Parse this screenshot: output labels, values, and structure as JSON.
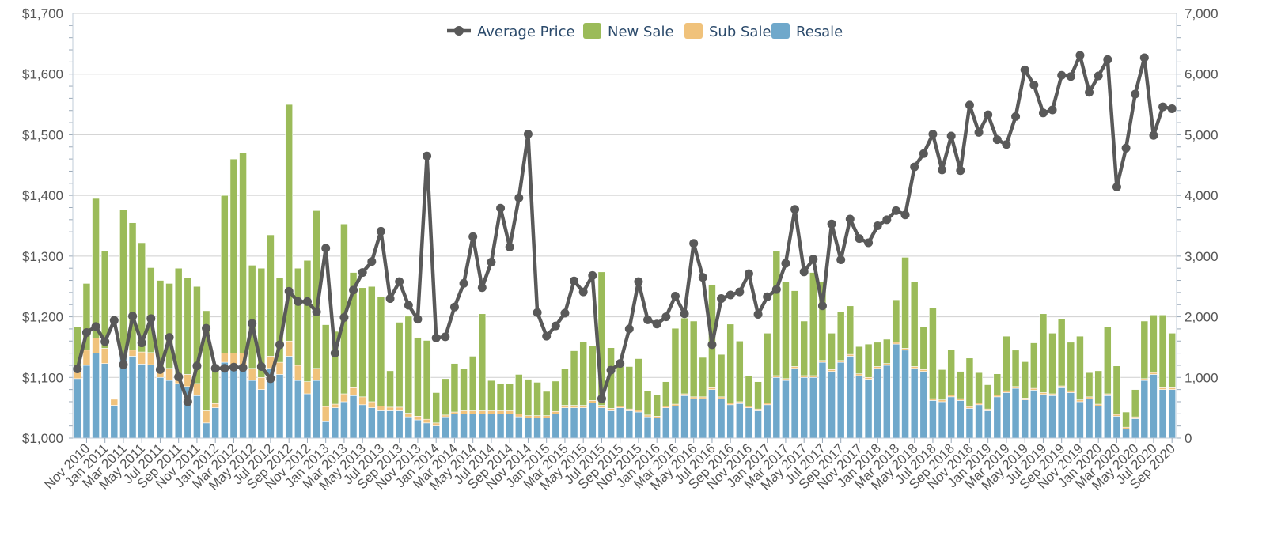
{
  "chart_data": {
    "type": "bar",
    "stacked": true,
    "legend_position": "top-center",
    "grid": true,
    "title": "",
    "xlabel": "",
    "ylabel": "",
    "ylabel_right": "",
    "x": [
      "Oct 2010",
      "Nov 2010",
      "Dec 2010",
      "Jan 2011",
      "Feb 2011",
      "Mar 2011",
      "Apr 2011",
      "May 2011",
      "Jun 2011",
      "Jul 2011",
      "Aug 2011",
      "Sep 2011",
      "Oct 2011",
      "Nov 2011",
      "Dec 2011",
      "Jan 2012",
      "Feb 2012",
      "Mar 2012",
      "Apr 2012",
      "May 2012",
      "Jun 2012",
      "Jul 2012",
      "Aug 2012",
      "Sep 2012",
      "Oct 2012",
      "Nov 2012",
      "Dec 2012",
      "Jan 2013",
      "Feb 2013",
      "Mar 2013",
      "Apr 2013",
      "May 2013",
      "Jun 2013",
      "Jul 2013",
      "Aug 2013",
      "Sep 2013",
      "Oct 2013",
      "Nov 2013",
      "Dec 2013",
      "Jan 2014",
      "Feb 2014",
      "Mar 2014",
      "Apr 2014",
      "May 2014",
      "Jun 2014",
      "Jul 2014",
      "Aug 2014",
      "Sep 2014",
      "Oct 2014",
      "Nov 2014",
      "Dec 2014",
      "Jan 2015",
      "Feb 2015",
      "Mar 2015",
      "Apr 2015",
      "May 2015",
      "Jun 2015",
      "Jul 2015",
      "Aug 2015",
      "Sep 2015",
      "Oct 2015",
      "Nov 2015",
      "Dec 2015",
      "Jan 2016",
      "Feb 2016",
      "Mar 2016",
      "Apr 2016",
      "May 2016",
      "Jun 2016",
      "Jul 2016",
      "Aug 2016",
      "Sep 2016",
      "Oct 2016",
      "Nov 2016",
      "Dec 2016",
      "Jan 2017",
      "Feb 2017",
      "Mar 2017",
      "Apr 2017",
      "May 2017",
      "Jun 2017",
      "Jul 2017",
      "Aug 2017",
      "Sep 2017",
      "Oct 2017",
      "Nov 2017",
      "Dec 2017",
      "Jan 2018",
      "Feb 2018",
      "Mar 2018",
      "Apr 2018",
      "May 2018",
      "Jun 2018",
      "Jul 2018",
      "Aug 2018",
      "Sep 2018",
      "Oct 2018",
      "Nov 2018",
      "Dec 2018",
      "Jan 2019",
      "Feb 2019",
      "Mar 2019",
      "Apr 2019",
      "May 2019",
      "Jun 2019",
      "Jul 2019",
      "Aug 2019",
      "Sep 2019",
      "Oct 2019",
      "Nov 2019",
      "Dec 2019",
      "Jan 2020",
      "Feb 2020",
      "Mar 2020",
      "Apr 2020",
      "May 2020",
      "Jun 2020",
      "Jul 2020",
      "Aug 2020",
      "Sep 2020"
    ],
    "x_tick_labels": [
      "Nov 2010",
      "Jan 2011",
      "Mar 2011",
      "May 2011",
      "Jul 2011",
      "Sep 2011",
      "Nov 2011",
      "Jan 2012",
      "Mar 2012",
      "May 2012",
      "Jul 2012",
      "Sep 2012",
      "Nov 2012",
      "Jan 2013",
      "Mar 2013",
      "May 2013",
      "Jul 2013",
      "Sep 2013",
      "Nov 2013",
      "Jan 2014",
      "Mar 2014",
      "May 2014",
      "Jul 2014",
      "Sep 2014",
      "Nov 2014",
      "Jan 2015",
      "Mar 2015",
      "May 2015",
      "Jul 2015",
      "Sep 2015",
      "Nov 2015",
      "Jan 2016",
      "Mar 2016",
      "May 2016",
      "Jul 2016",
      "Sep 2016",
      "Nov 2016",
      "Jan 2017",
      "Mar 2017",
      "May 2017",
      "Jul 2017",
      "Sep 2017",
      "Nov 2017",
      "Jan 2018",
      "Mar 2018",
      "May 2018",
      "Jul 2018",
      "Sep 2018",
      "Nov 2018",
      "Jan 2019",
      "Mar 2019",
      "May 2019",
      "Jul 2019",
      "Sep 2019",
      "Nov 2019",
      "Jan 2020",
      "Mar 2020",
      "May 2020",
      "Jul 2020",
      "Sep 2020"
    ],
    "y_left": {
      "ylim": [
        1000,
        1700
      ],
      "ticks": [
        "$1,000",
        "$1,100",
        "$1,200",
        "$1,300",
        "$1,400",
        "$1,500",
        "$1,600",
        "$1,700"
      ]
    },
    "y_right": {
      "ylim": [
        0,
        7000
      ],
      "ticks": [
        "0",
        "1,000",
        "2,000",
        "3,000",
        "4,000",
        "5,000",
        "6,000",
        "7,000"
      ]
    },
    "series": [
      {
        "name": "Average Price",
        "type": "line",
        "axis": "left",
        "color": "#595959",
        "values": [
          1114,
          1174,
          1184,
          1159,
          1194,
          1121,
          1201,
          1157,
          1197,
          1113,
          1166,
          1101,
          1060,
          1119,
          1181,
          1115,
          1115,
          1117,
          1116,
          1189,
          1118,
          1098,
          1154,
          1242,
          1225,
          1225,
          1208,
          1313,
          1140,
          1199,
          1244,
          1273,
          1291,
          1341,
          1230,
          1258,
          1219,
          1196,
          1465,
          1165,
          1167,
          1216,
          1255,
          1332,
          1248,
          1290,
          1379,
          1315,
          1396,
          1501,
          1207,
          1168,
          1185,
          1206,
          1259,
          1241,
          1268,
          1065,
          1112,
          1123,
          1180,
          1258,
          1195,
          1188,
          1200,
          1234,
          1205,
          1321,
          1265,
          1154,
          1230,
          1236,
          1241,
          1271,
          1204,
          1233,
          1245,
          1288,
          1377,
          1274,
          1295,
          1218,
          1353,
          1294,
          1361,
          1329,
          1322,
          1350,
          1360,
          1375,
          1368,
          1447,
          1469,
          1501,
          1442,
          1498,
          1441,
          1549,
          1504,
          1533,
          1492,
          1484,
          1530,
          1607,
          1582,
          1536,
          1541,
          1598,
          1596,
          1631,
          1570,
          1597,
          1624,
          1414,
          1478,
          1567,
          1627,
          1499,
          1546,
          1543
        ]
      },
      {
        "name": "New Sale",
        "type": "bar",
        "axis": "right",
        "color": "#9bbb59",
        "values": [
          700,
          1100,
          2300,
          1600,
          0,
          2400,
          2100,
          1800,
          1400,
          1500,
          1400,
          1800,
          1600,
          1600,
          1650,
          600,
          2600,
          3200,
          3300,
          1700,
          1800,
          2000,
          1400,
          3900,
          1600,
          2000,
          2600,
          1350,
          1200,
          2800,
          1900,
          1800,
          1900,
          1800,
          600,
          1400,
          1600,
          1300,
          1300,
          500,
          600,
          800,
          700,
          900,
          1600,
          500,
          450,
          450,
          650,
          600,
          550,
          400,
          500,
          600,
          900,
          1050,
          900,
          2200,
          1000,
          650,
          700,
          850,
          400,
          350,
          400,
          1250,
          1250,
          1250,
          650,
          1700,
          700,
          1300,
          1000,
          500,
          450,
          1150,
          2050,
          1600,
          1250,
          900,
          1700,
          1300,
          600,
          800,
          800,
          450,
          550,
          400,
          400,
          700,
          1500,
          1400,
          700,
          1500,
          500,
          750,
          450,
          800,
          500,
          400,
          350,
          900,
          600,
          600,
          750,
          1300,
          1000,
          1100,
          800,
          1050,
          400,
          550,
          1100,
          800,
          250,
          450,
          950,
          950,
          1200,
          900
        ],
        "approximate": true
      },
      {
        "name": "Sub Sale",
        "type": "bar",
        "axis": "right",
        "color": "#f0c27b",
        "values": [
          150,
          250,
          250,
          250,
          100,
          0,
          100,
          200,
          200,
          100,
          200,
          100,
          200,
          200,
          200,
          70,
          150,
          200,
          200,
          200,
          200,
          200,
          200,
          250,
          250,
          200,
          200,
          250,
          60,
          130,
          130,
          130,
          100,
          80,
          60,
          60,
          60,
          60,
          60,
          50,
          30,
          30,
          50,
          50,
          50,
          50,
          50,
          50,
          50,
          40,
          40,
          40,
          40,
          40,
          40,
          40,
          40,
          40,
          40,
          30,
          30,
          30,
          30,
          30,
          30,
          30,
          30,
          30,
          30,
          30,
          30,
          30,
          30,
          30,
          30,
          30,
          30,
          30,
          30,
          30,
          30,
          30,
          30,
          30,
          30,
          30,
          30,
          30,
          30,
          30,
          30,
          30,
          30,
          30,
          30,
          30,
          30,
          30,
          30,
          30,
          30,
          30,
          30,
          30,
          30,
          30,
          30,
          30,
          30,
          30,
          30,
          30,
          30,
          30,
          30,
          30,
          30,
          30,
          30,
          30
        ],
        "approximate": true
      },
      {
        "name": "Resale",
        "type": "bar",
        "axis": "right",
        "color": "#6fa8cb",
        "values": [
          980,
          1200,
          1400,
          1230,
          540,
          1370,
          1350,
          1220,
          1210,
          1000,
          950,
          900,
          850,
          700,
          250,
          500,
          1250,
          1200,
          1200,
          950,
          800,
          1150,
          1050,
          1350,
          950,
          730,
          950,
          270,
          500,
          600,
          700,
          550,
          500,
          450,
          450,
          450,
          350,
          300,
          250,
          200,
          350,
          400,
          400,
          400,
          400,
          400,
          400,
          400,
          350,
          330,
          330,
          330,
          400,
          500,
          500,
          500,
          580,
          500,
          450,
          500,
          450,
          430,
          350,
          330,
          500,
          530,
          700,
          650,
          650,
          800,
          650,
          550,
          570,
          500,
          450,
          550,
          1000,
          950,
          1150,
          1000,
          1000,
          1250,
          1100,
          1250,
          1350,
          1030,
          970,
          1150,
          1200,
          1550,
          1450,
          1150,
          1100,
          620,
          600,
          680,
          620,
          490,
          550,
          450,
          680,
          750,
          820,
          630,
          790,
          720,
          700,
          830,
          750,
          600,
          650,
          530,
          700,
          360,
          150,
          320,
          950,
          1050,
          800,
          800
        ],
        "approximate": true
      }
    ]
  },
  "legend": [
    {
      "label": "Average Price",
      "color": "#595959",
      "kind": "line"
    },
    {
      "label": "New Sale",
      "color": "#9bbb59",
      "kind": "bar"
    },
    {
      "label": "Sub Sale",
      "color": "#f0c27b",
      "kind": "bar"
    },
    {
      "label": "Resale",
      "color": "#6fa8cb",
      "kind": "bar"
    }
  ]
}
